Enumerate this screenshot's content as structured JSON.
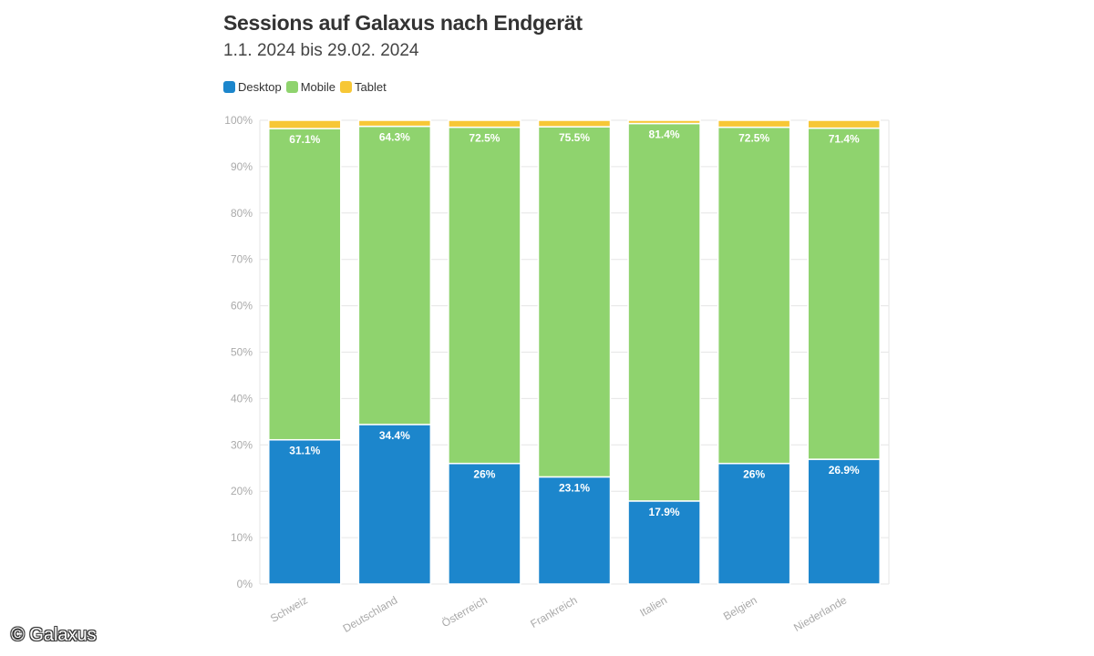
{
  "title": "Sessions auf Galaxus nach Endgerät",
  "subtitle": "1.1. 2024 bis 29.02. 2024",
  "copyright": "© Galaxus",
  "colors": {
    "desktop": "#1c86cc",
    "mobile": "#8fd36e",
    "tablet": "#f7c736",
    "grid": "#e6e6e6",
    "axis_text": "#aaaaaa"
  },
  "legend": [
    {
      "label": "Desktop",
      "color": "#1c86cc"
    },
    {
      "label": "Mobile",
      "color": "#8fd36e"
    },
    {
      "label": "Tablet",
      "color": "#f7c736"
    }
  ],
  "chart_data": {
    "type": "bar",
    "stacked": true,
    "title": "Sessions auf Galaxus nach Endgerät",
    "subtitle": "1.1. 2024 bis 29.02. 2024",
    "categories": [
      "Schweiz",
      "Deutschland",
      "Österreich",
      "Frankreich",
      "Italien",
      "Belgien",
      "Niederlande"
    ],
    "series": [
      {
        "name": "Desktop",
        "values": [
          31.1,
          34.4,
          26,
          23.1,
          17.9,
          26,
          26.9
        ],
        "labels": [
          "31.1%",
          "34.4%",
          "26%",
          "23.1%",
          "17.9%",
          "26%",
          "26.9%"
        ]
      },
      {
        "name": "Mobile",
        "values": [
          67.1,
          64.3,
          72.5,
          75.5,
          81.4,
          72.5,
          71.4
        ],
        "labels": [
          "67.1%",
          "64.3%",
          "72.5%",
          "75.5%",
          "81.4%",
          "72.5%",
          "71.4%"
        ]
      },
      {
        "name": "Tablet",
        "values": [
          1.8,
          1.3,
          1.5,
          1.4,
          0.7,
          1.5,
          1.7
        ]
      }
    ],
    "ylim": [
      0,
      100
    ],
    "yticks": [
      0,
      10,
      20,
      30,
      40,
      50,
      60,
      70,
      80,
      90,
      100
    ],
    "ytick_labels": [
      "0%",
      "10%",
      "20%",
      "30%",
      "40%",
      "50%",
      "60%",
      "70%",
      "80%",
      "90%",
      "100%"
    ],
    "xlabel": "",
    "ylabel": "",
    "grid": true,
    "legend_position": "top-left"
  }
}
